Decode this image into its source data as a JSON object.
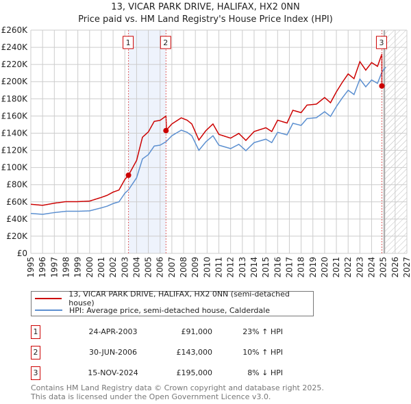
{
  "chart_data": {
    "type": "line",
    "title": "13, VICAR PARK DRIVE, HALIFAX, HX2 0NN",
    "subtitle": "Price paid vs. HM Land Registry's House Price Index (HPI)",
    "xlim": [
      1995,
      2027
    ],
    "ylim": [
      0,
      260000
    ],
    "grid": true,
    "y_ticks": [
      {
        "v": 0,
        "label": "£0"
      },
      {
        "v": 20000,
        "label": "£20K"
      },
      {
        "v": 40000,
        "label": "£40K"
      },
      {
        "v": 60000,
        "label": "£60K"
      },
      {
        "v": 80000,
        "label": "£80K"
      },
      {
        "v": 100000,
        "label": "£100K"
      },
      {
        "v": 120000,
        "label": "£120K"
      },
      {
        "v": 140000,
        "label": "£140K"
      },
      {
        "v": 160000,
        "label": "£160K"
      },
      {
        "v": 180000,
        "label": "£180K"
      },
      {
        "v": 200000,
        "label": "£200K"
      },
      {
        "v": 220000,
        "label": "£220K"
      },
      {
        "v": 240000,
        "label": "£240K"
      },
      {
        "v": 260000,
        "label": "£260K"
      }
    ],
    "x_ticks": [
      "1995",
      "1996",
      "1997",
      "1998",
      "1999",
      "2000",
      "2001",
      "2002",
      "2003",
      "2004",
      "2005",
      "2006",
      "2007",
      "2008",
      "2009",
      "2010",
      "2011",
      "2012",
      "2013",
      "2014",
      "2015",
      "2016",
      "2017",
      "2018",
      "2019",
      "2020",
      "2021",
      "2022",
      "2023",
      "2024",
      "2025",
      "2026",
      "2027"
    ],
    "hpi_series": {
      "name": "HPI: Average price, semi-detached house, Calderdale",
      "color": "#5b8fd0",
      "x": [
        1995,
        1996,
        1997,
        1998,
        1999,
        2000,
        2001,
        2001.5,
        2002,
        2002.5,
        2003,
        2003.31,
        2004,
        2004.5,
        2005,
        2005.5,
        2006,
        2006.5,
        2007,
        2007.8,
        2008.3,
        2008.7,
        2009.3,
        2009.9,
        2010.5,
        2011,
        2012,
        2012.7,
        2013.3,
        2014,
        2015,
        2015.5,
        2016,
        2016.8,
        2017.3,
        2018,
        2018.5,
        2019.3,
        2020,
        2020.5,
        2021,
        2021.5,
        2022,
        2022.5,
        2023,
        2023.5,
        2024,
        2024.5,
        2024.87,
        2025.2
      ],
      "y": [
        46500,
        45500,
        47500,
        49000,
        49000,
        49500,
        53000,
        55000,
        58000,
        60000,
        70000,
        74000,
        88000,
        110000,
        115000,
        125000,
        126000,
        130000,
        137000,
        143500,
        141000,
        137000,
        120000,
        130000,
        137000,
        126000,
        122000,
        127000,
        119600,
        129000,
        133000,
        129000,
        141000,
        138000,
        151500,
        149000,
        157000,
        158000,
        165000,
        159500,
        171000,
        181000,
        190000,
        185000,
        203000,
        194000,
        202000,
        198000,
        211000,
        217000
      ]
    },
    "property_series": {
      "name": "13, VICAR PARK DRIVE, HALIFAX, HX2 0NN (semi-detached house)",
      "color": "#cc0000"
    },
    "sales": [
      {
        "id": "1",
        "x": 2003.31,
        "date": "24-APR-2003",
        "value": 91000,
        "price": "£91,000",
        "hpi": "23% ↑ HPI"
      },
      {
        "id": "2",
        "x": 2006.5,
        "date": "30-JUN-2006",
        "value": 143000,
        "price": "£143,000",
        "hpi": "10% ↑ HPI"
      },
      {
        "id": "3",
        "x": 2024.87,
        "date": "15-NOV-2024",
        "value": 195000,
        "price": "£195,000",
        "hpi": "8% ↓ HPI"
      }
    ],
    "forecast_start": 2025.1
  },
  "footer": {
    "line1": "Contains HM Land Registry data © Crown copyright and database right 2025.",
    "line2": "This data is licensed under the Open Government Licence v3.0."
  }
}
